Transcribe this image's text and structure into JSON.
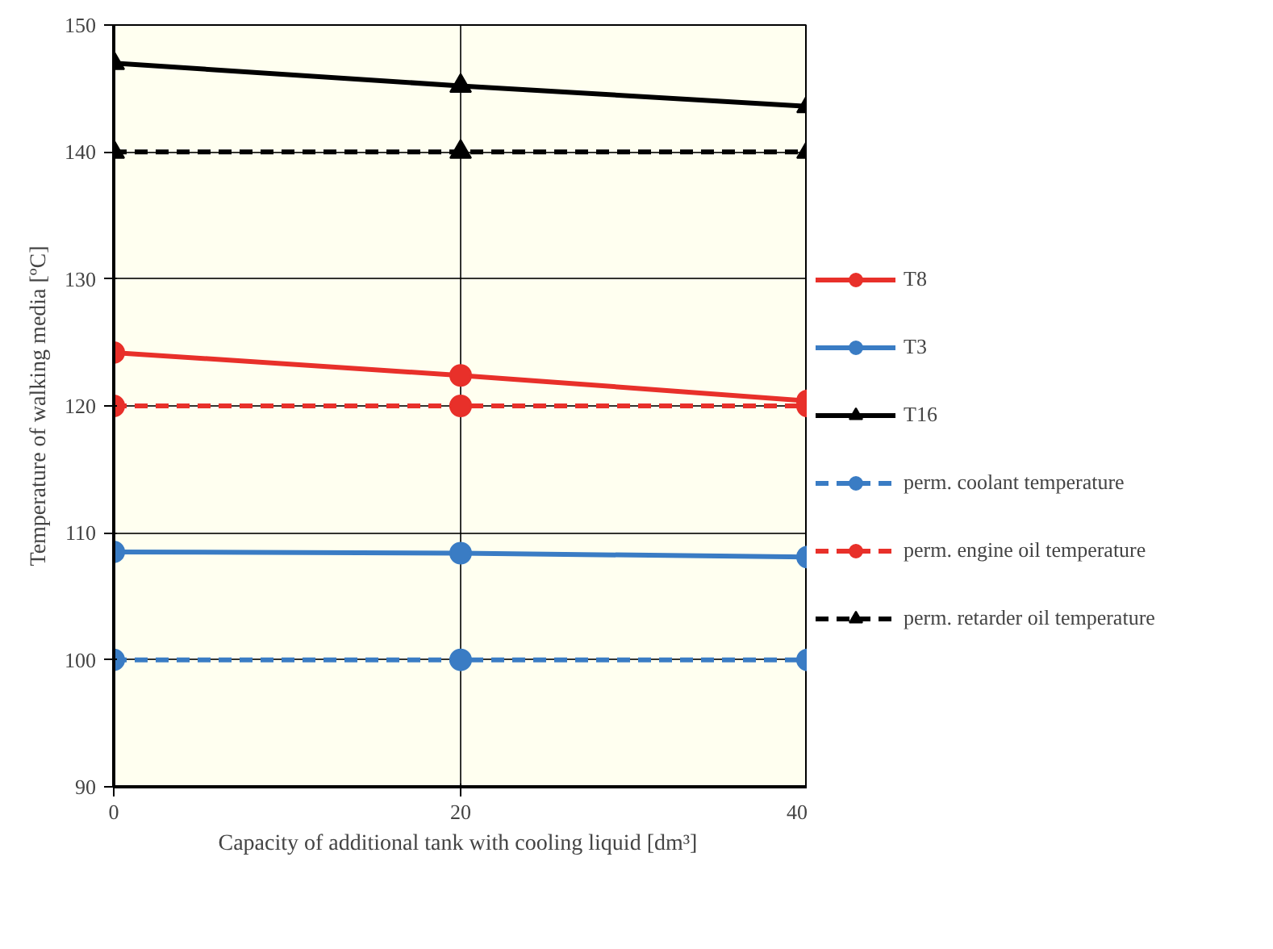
{
  "chart_data": {
    "type": "line",
    "xlabel": "Capacity of additional tank with cooling liquid  [dm³]",
    "ylabel": "Temperature of walking media [ºC]",
    "x": [
      0,
      20,
      40
    ],
    "xlim": [
      0,
      40
    ],
    "xticks": [
      0,
      20,
      40
    ],
    "ylim": [
      90,
      150
    ],
    "yticks": [
      90,
      100,
      110,
      120,
      130,
      140,
      150
    ],
    "grid": true,
    "legend": "right",
    "series": [
      {
        "name": "T8",
        "color": "#e8302a",
        "values": [
          124.2,
          122.4,
          120.4
        ],
        "marker": "circle",
        "line_style": "solid"
      },
      {
        "name": "T3",
        "color": "#3a7cc4",
        "values": [
          108.5,
          108.4,
          108.1
        ],
        "marker": "circle",
        "line_style": "solid"
      },
      {
        "name": "T16",
        "color": "#000000",
        "values": [
          147.0,
          145.2,
          143.6
        ],
        "marker": "triangle",
        "line_style": "solid"
      },
      {
        "name": "perm. coolant temperature",
        "color": "#3a7cc4",
        "values": [
          100,
          100,
          100
        ],
        "marker": "circle",
        "line_style": "dashed"
      },
      {
        "name": "perm. engine oil temperature",
        "color": "#e8302a",
        "values": [
          120,
          120,
          120
        ],
        "marker": "circle",
        "line_style": "dashed"
      },
      {
        "name": "perm. retarder oil temperature",
        "color": "#000000",
        "values": [
          140,
          140,
          140
        ],
        "marker": "triangle",
        "line_style": "dashed"
      }
    ]
  }
}
